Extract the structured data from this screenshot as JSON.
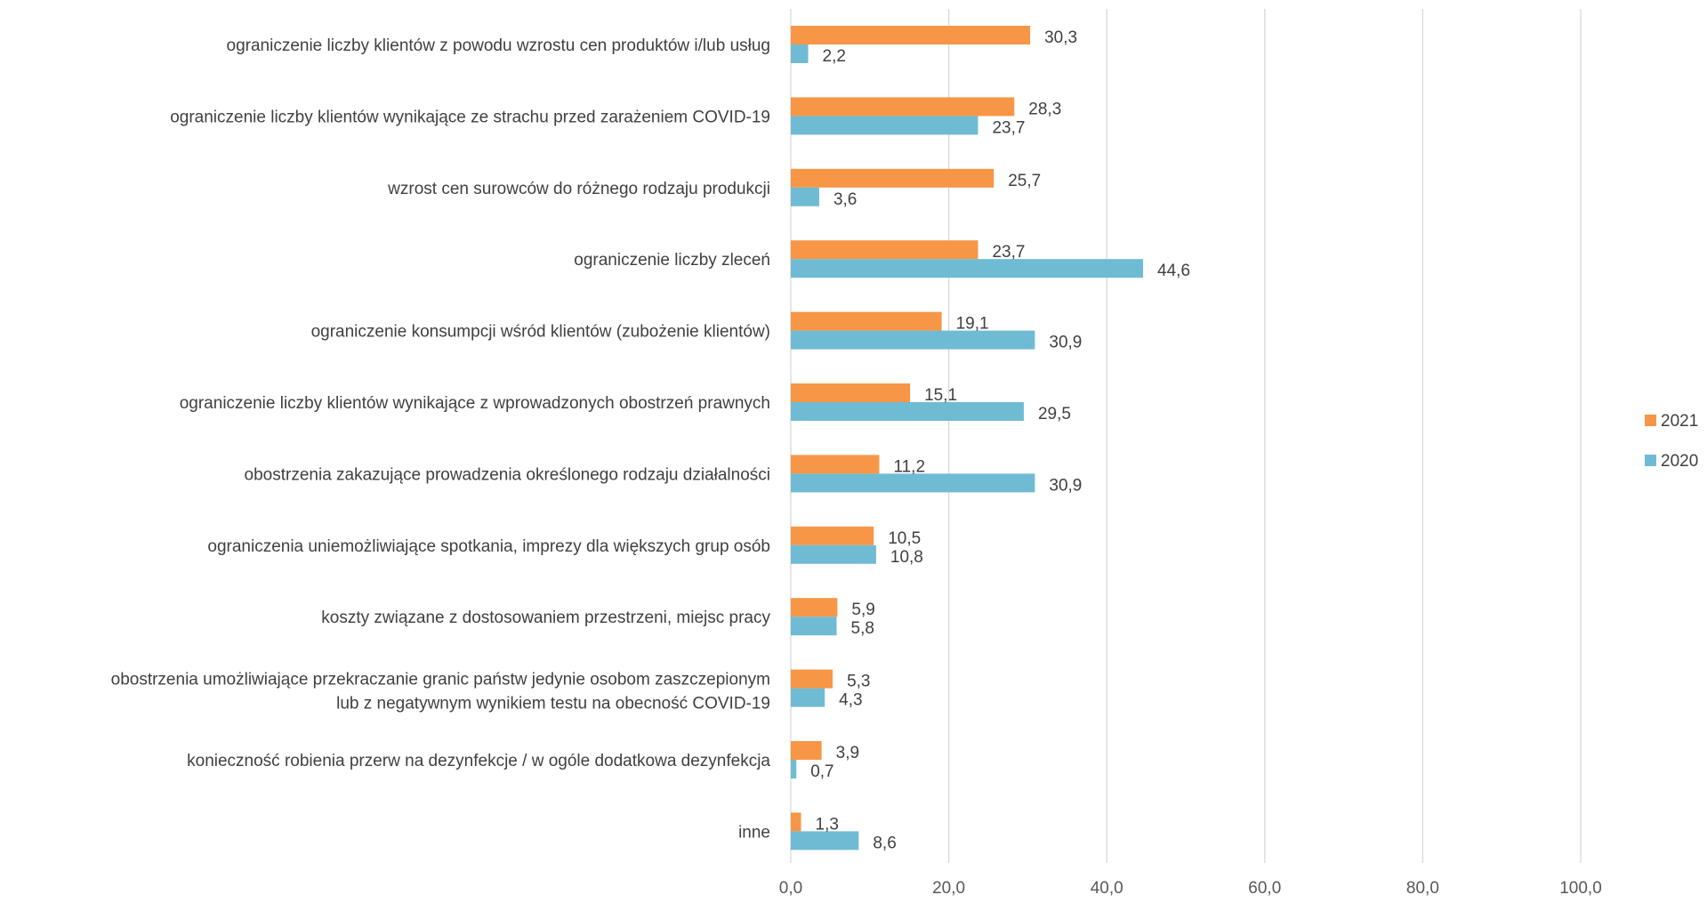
{
  "chart_data": {
    "type": "bar",
    "orientation": "horizontal",
    "title": "",
    "xlabel": "",
    "ylabel": "",
    "xlim": [
      0,
      100
    ],
    "x_ticks": [
      "0,0",
      "20,0",
      "40,0",
      "60,0",
      "80,0",
      "100,0"
    ],
    "x_tick_values": [
      0,
      20,
      40,
      60,
      80,
      100
    ],
    "grid": "vertical",
    "legend_position": "right",
    "categories": [
      "ograniczenie liczby klientów z powodu wzrostu cen produktów i/lub usług",
      "ograniczenie liczby klientów wynikające ze strachu przed zarażeniem COVID-19",
      "wzrost cen surowców do różnego rodzaju produkcji",
      "ograniczenie liczby zleceń",
      "ograniczenie konsumpcji wśród klientów (zubożenie klientów)",
      "ograniczenie liczby klientów wynikające z wprowadzonych obostrzeń prawnych",
      "obostrzenia zakazujące prowadzenia określonego rodzaju działalności",
      "ograniczenia uniemożliwiające spotkania, imprezy dla większych grup osób",
      "koszty związane z dostosowaniem przestrzeni, miejsc pracy",
      "obostrzenia umożliwiające przekraczanie granic państw jedynie osobom zaszczepionym lub z negatywnym wynikiem testu na obecność COVID-19",
      "konieczność robienia przerw na dezynfekcje / w ogóle dodatkowa dezynfekcja",
      "inne"
    ],
    "category_lines": [
      [
        "ograniczenie liczby klientów z powodu wzrostu cen produktów i/lub usług"
      ],
      [
        "ograniczenie liczby klientów wynikające ze strachu przed zarażeniem COVID-19"
      ],
      [
        "wzrost cen surowców do różnego rodzaju produkcji"
      ],
      [
        "ograniczenie liczby zleceń"
      ],
      [
        "ograniczenie konsumpcji wśród klientów (zubożenie klientów)"
      ],
      [
        "ograniczenie liczby klientów wynikające z wprowadzonych obostrzeń prawnych"
      ],
      [
        "obostrzenia zakazujące prowadzenia określonego rodzaju działalności"
      ],
      [
        "ograniczenia uniemożliwiające spotkania, imprezy dla większych grup osób"
      ],
      [
        "koszty związane z dostosowaniem przestrzeni, miejsc pracy"
      ],
      [
        "obostrzenia umożliwiające przekraczanie granic państw jedynie osobom zaszczepionym",
        "lub z negatywnym wynikiem testu na obecność COVID-19"
      ],
      [
        "konieczność robienia przerw na dezynfekcje / w ogóle dodatkowa dezynfekcja"
      ],
      [
        "inne"
      ]
    ],
    "series": [
      {
        "name": "2021",
        "color": "#f79646",
        "values": [
          30.3,
          28.3,
          25.7,
          23.7,
          19.1,
          15.1,
          11.2,
          10.5,
          5.9,
          5.3,
          3.9,
          1.3
        ],
        "labels": [
          "30,3",
          "28,3",
          "25,7",
          "23,7",
          "19,1",
          "15,1",
          "11,2",
          "10,5",
          "5,9",
          "5,3",
          "3,9",
          "1,3"
        ]
      },
      {
        "name": "2020",
        "color": "#6fbbd3",
        "values": [
          2.2,
          23.7,
          3.6,
          44.6,
          30.9,
          29.5,
          30.9,
          10.8,
          5.8,
          4.3,
          0.7,
          8.6
        ],
        "labels": [
          "2,2",
          "23,7",
          "3,6",
          "44,6",
          "30,9",
          "29,5",
          "30,9",
          "10,8",
          "5,8",
          "4,3",
          "0,7",
          "8,6"
        ]
      }
    ]
  },
  "colors": {
    "gridline": "#d9d9d9",
    "text": "#404040",
    "tick_text": "#595959"
  }
}
